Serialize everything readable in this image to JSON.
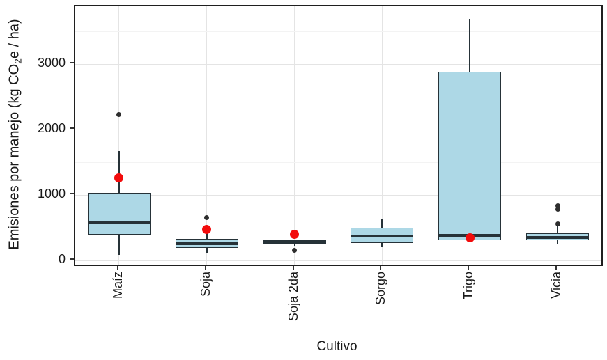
{
  "figure": {
    "background": "#ffffff"
  },
  "chart_data": {
    "type": "boxplot",
    "title": "",
    "xlabel": "Cultivo",
    "ylabel": "Emisiones por manejo (kg CO2e / ha)",
    "ylabel_parts": {
      "pre": "Emisiones por manejo (kg CO",
      "sub": "2",
      "post": "e / ha)"
    },
    "categories": [
      "Maíz",
      "Soja",
      "Soja 2da",
      "Sorgo",
      "Trigo",
      "Vicia"
    ],
    "y_ticks": [
      0,
      1000,
      2000,
      3000
    ],
    "y_minor_ticks": [
      500,
      1500,
      2500,
      3500
    ],
    "ylim": [
      -60,
      3885
    ],
    "grid": "major+minor horizontal, major vertical",
    "legend": "none",
    "units": "kg CO2e/ha",
    "series": [
      {
        "name": "Maíz",
        "whisker_low": 85,
        "q1": 400,
        "median": 580,
        "q3": 1030,
        "whisker_high": 1675,
        "outliers": [
          2235
        ],
        "mean": 1265
      },
      {
        "name": "Soja",
        "whisker_low": 110,
        "q1": 195,
        "median": 260,
        "q3": 330,
        "whisker_high": 500,
        "outliers": [
          655
        ],
        "mean": 480
      },
      {
        "name": "Soja 2da",
        "whisker_low": 225,
        "q1": 260,
        "median": 290,
        "q3": 315,
        "whisker_high": 315,
        "outliers": [
          155
        ],
        "mean": 400
      },
      {
        "name": "Sorgo",
        "whisker_low": 210,
        "q1": 270,
        "median": 375,
        "q3": 500,
        "whisker_high": 640,
        "outliers": [],
        "mean": null
      },
      {
        "name": "Trigo",
        "whisker_low": 315,
        "q1": 315,
        "median": 385,
        "q3": 2890,
        "whisker_high": 3690,
        "outliers": [],
        "mean": 350
      },
      {
        "name": "Vicia",
        "whisker_low": 260,
        "q1": 315,
        "median": 350,
        "q3": 420,
        "whisker_high": 530,
        "outliers": [
          840,
          790,
          560
        ],
        "mean": null
      }
    ],
    "colors": {
      "box_fill": "#ADD8E6",
      "box_border": "#263238",
      "median": "#263238",
      "whisker": "#263238",
      "outlier_dot": "#2e2e2e",
      "mean_dot": "#f20c0c",
      "grid_major": "#e4e4e4",
      "grid_minor": "#f3f3f3",
      "panel_border": "#1f1f1f",
      "text": "#1a1a1a"
    }
  }
}
